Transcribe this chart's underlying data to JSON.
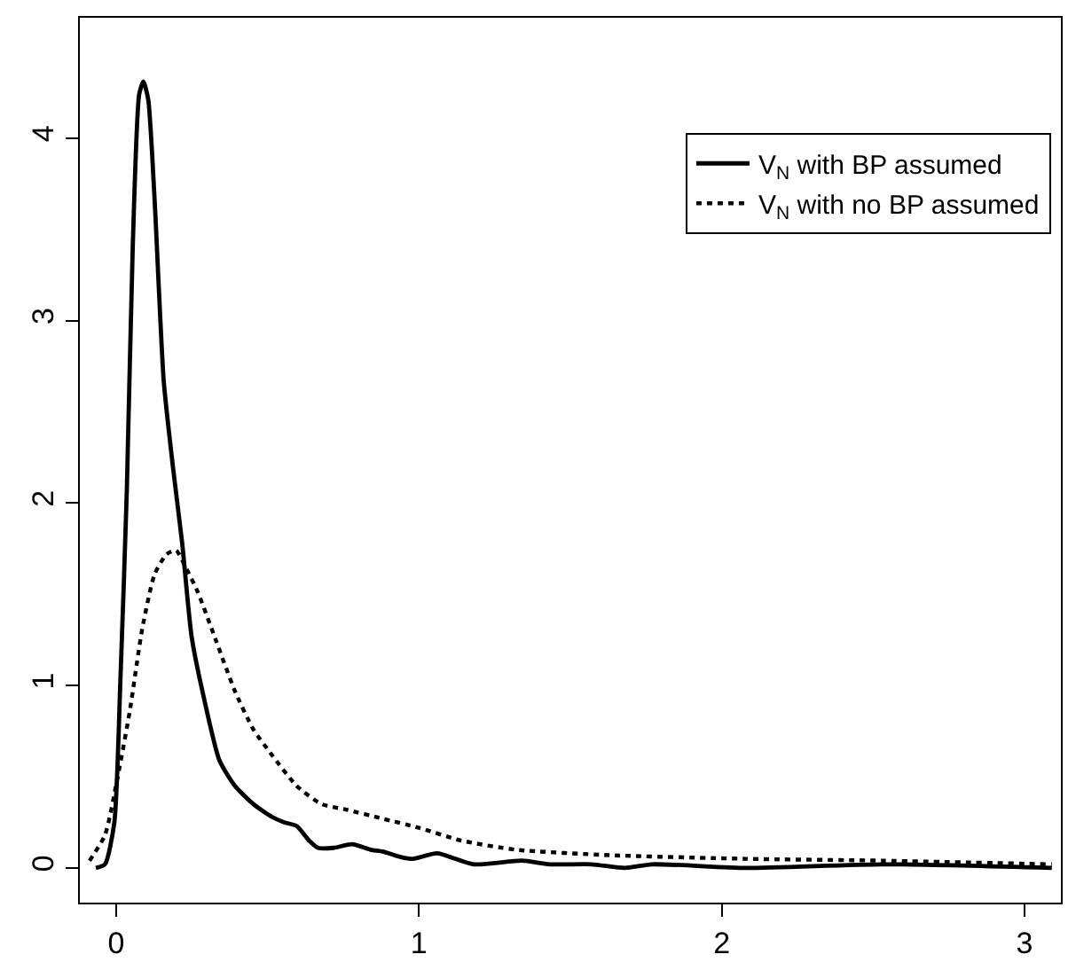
{
  "chart_data": {
    "type": "line",
    "xlim": [
      -0.12,
      3.12
    ],
    "xticks": [
      0,
      1,
      2,
      3
    ],
    "ylim": [
      -0.19,
      4.66
    ],
    "yticks": [
      0,
      1,
      2,
      3,
      4
    ],
    "legend": "top right",
    "marker": "none",
    "series": [
      {
        "name": "V$_{N}$ with BP assumed",
        "color": "#000000",
        "line_style": "solid",
        "x": [
          -0.067,
          -0.037,
          -0.006,
          0.014,
          0.035,
          0.055,
          0.076,
          0.09,
          0.106,
          0.127,
          0.157,
          0.188,
          0.218,
          0.249,
          0.29,
          0.341,
          0.392,
          0.453,
          0.514,
          0.555,
          0.596,
          0.637,
          0.667,
          0.718,
          0.78,
          0.84,
          0.88,
          0.94,
          0.98,
          1.06,
          1.18,
          1.34,
          1.43,
          1.57,
          1.68,
          1.77,
          2.08,
          2.53,
          3.09
        ],
        "values": [
          0,
          0.02,
          0.25,
          1.03,
          2.06,
          3.42,
          4.24,
          4.31,
          4.21,
          3.66,
          2.67,
          2.19,
          1.78,
          1.27,
          0.93,
          0.59,
          0.45,
          0.35,
          0.28,
          0.25,
          0.23,
          0.15,
          0.11,
          0.11,
          0.13,
          0.1,
          0.09,
          0.06,
          0.05,
          0.08,
          0.02,
          0.04,
          0.02,
          0.02,
          0,
          0.02,
          0,
          0.02,
          0
        ]
      },
      {
        "name": "V$_{N}$ with no BP assumed",
        "color": "#000000",
        "line_style": "dotted",
        "x": [
          -0.088,
          -0.037,
          0.004,
          0.045,
          0.086,
          0.127,
          0.167,
          0.198,
          0.229,
          0.27,
          0.331,
          0.392,
          0.453,
          0.514,
          0.596,
          0.678,
          0.759,
          0.88,
          1.0,
          1.14,
          1.32,
          1.63,
          2.08,
          2.53,
          3.09
        ],
        "values": [
          0.04,
          0.18,
          0.49,
          0.86,
          1.31,
          1.61,
          1.72,
          1.74,
          1.65,
          1.51,
          1.24,
          0.97,
          0.76,
          0.62,
          0.45,
          0.35,
          0.32,
          0.27,
          0.22,
          0.15,
          0.1,
          0.07,
          0.05,
          0.04,
          0.02
        ]
      }
    ]
  }
}
